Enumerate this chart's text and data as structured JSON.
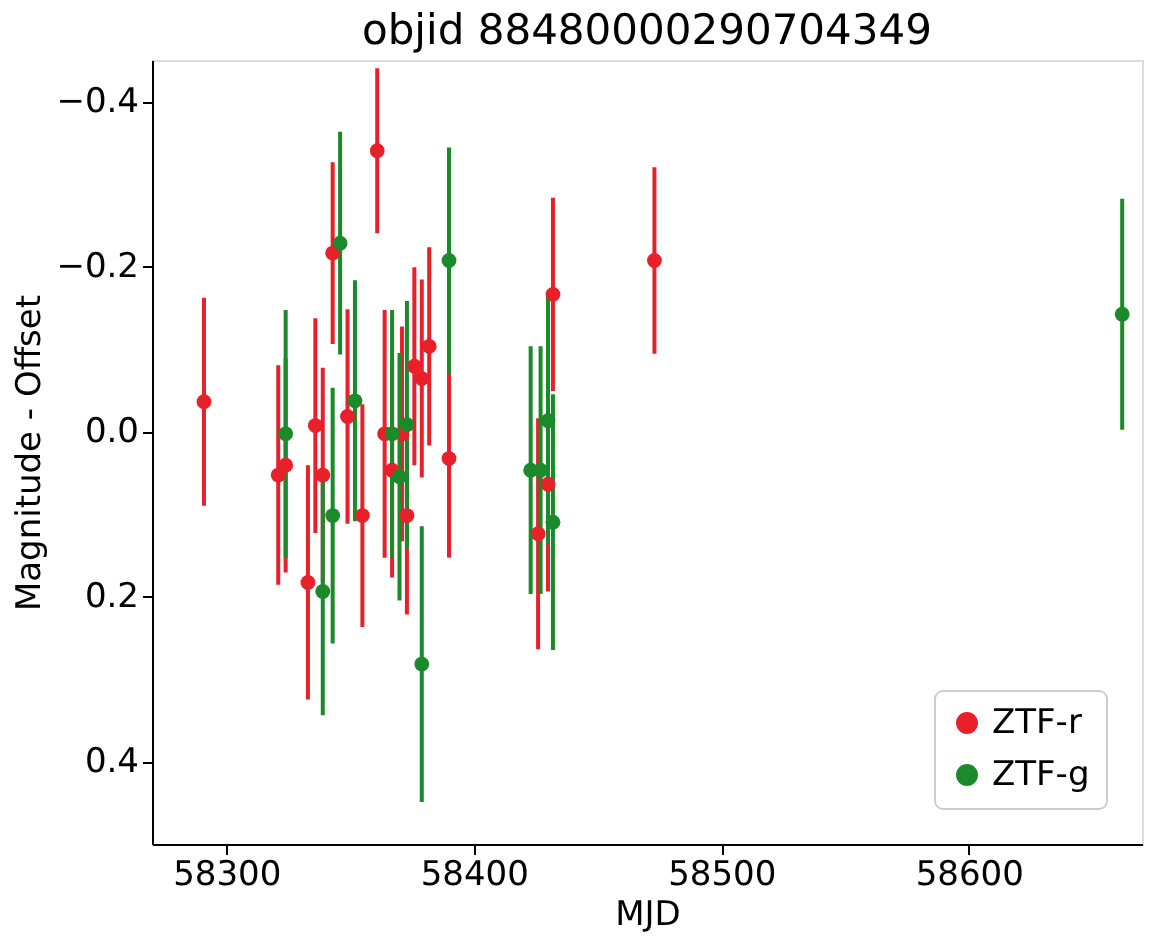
{
  "chart_data": {
    "type": "scatter",
    "title": "objid 88480000290704349",
    "xlabel": "MJD",
    "ylabel": "Magnitude - Offset",
    "xlim": [
      58270,
      58670
    ],
    "ylim": [
      0.5,
      -0.45
    ],
    "xticks": [
      58300,
      58400,
      58500,
      58600
    ],
    "yticks": [
      {
        "value": -0.4,
        "label": "−0.4"
      },
      {
        "value": -0.2,
        "label": "−0.2"
      },
      {
        "value": 0.0,
        "label": "0.0"
      },
      {
        "value": 0.2,
        "label": "0.2"
      },
      {
        "value": 0.4,
        "label": "0.4"
      }
    ],
    "grid": false,
    "legend": "bottom right",
    "marker": "circle",
    "series": [
      {
        "name": "ZTF-r",
        "color": "#e8202a",
        "x": [
          58291,
          58321,
          58324,
          58333,
          58336,
          58339,
          58343,
          58349,
          58355,
          58361,
          58364,
          58367,
          58371,
          58373,
          58376,
          58379,
          58382,
          58390,
          58432,
          58430,
          58426,
          58473
        ],
        "values": [
          -0.036,
          0.053,
          0.041,
          0.183,
          -0.007,
          0.053,
          -0.216,
          -0.018,
          0.102,
          -0.34,
          0.003,
          0.047,
          0.003,
          0.102,
          -0.079,
          -0.064,
          -0.103,
          0.033,
          -0.166,
          0.064,
          0.124,
          -0.207
        ],
        "errors": [
          0.126,
          0.133,
          0.13,
          0.142,
          0.13,
          0.13,
          0.11,
          0.13,
          0.135,
          0.1,
          0.15,
          0.13,
          0.13,
          0.12,
          0.12,
          0.12,
          0.12,
          0.12,
          0.117,
          0.13,
          0.14,
          0.113
        ]
      },
      {
        "name": "ZTF-g",
        "color": "#1a8a2a",
        "x": [
          58324,
          58339,
          58343,
          58346,
          58352,
          58367,
          58370,
          58373,
          58379,
          58390,
          58423,
          58427,
          58430,
          58432,
          58662
        ],
        "values": [
          0.003,
          0.194,
          0.102,
          -0.228,
          -0.037,
          0.003,
          0.055,
          -0.008,
          0.282,
          -0.207,
          0.047,
          0.047,
          -0.013,
          0.11,
          -0.142
        ],
        "errors": [
          0.15,
          0.15,
          0.155,
          0.135,
          0.146,
          0.15,
          0.15,
          0.15,
          0.167,
          0.137,
          0.15,
          0.15,
          0.15,
          0.155,
          0.14
        ]
      }
    ]
  }
}
